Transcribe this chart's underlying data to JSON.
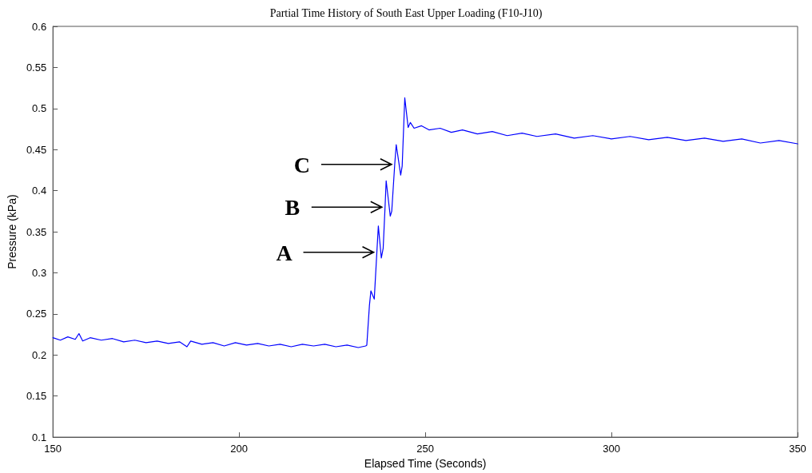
{
  "chart_data": {
    "type": "line",
    "title": "Partial Time History of South East Upper Loading (F10-J10)",
    "xlabel": "Elapsed Time (Seconds)",
    "ylabel": "Pressure (kPa)",
    "x": [
      150,
      152,
      154,
      156,
      157,
      158,
      160,
      163,
      166,
      169,
      172,
      175,
      178,
      181,
      184,
      186,
      187,
      190,
      193,
      196,
      199,
      202,
      205,
      208,
      211,
      214,
      217,
      220,
      223,
      226,
      229,
      232,
      234,
      234.3,
      235.0,
      235.4,
      236.3,
      237.0,
      237.4,
      238.2,
      238.7,
      239.2,
      239.5,
      240.6,
      241.0,
      241.8,
      242.2,
      243.4,
      243.8,
      244.5,
      245.4,
      246,
      247,
      249,
      251,
      254,
      257,
      260,
      264,
      268,
      272,
      276,
      280,
      285,
      290,
      295,
      300,
      305,
      310,
      315,
      320,
      325,
      330,
      335,
      340,
      345,
      350
    ],
    "series": [
      {
        "color": "#0000ff",
        "values": [
          0.221,
          0.218,
          0.222,
          0.219,
          0.226,
          0.217,
          0.221,
          0.218,
          0.22,
          0.216,
          0.218,
          0.215,
          0.217,
          0.214,
          0.216,
          0.21,
          0.217,
          0.213,
          0.215,
          0.211,
          0.215,
          0.212,
          0.214,
          0.211,
          0.213,
          0.21,
          0.213,
          0.211,
          0.213,
          0.21,
          0.212,
          0.209,
          0.211,
          0.212,
          0.26,
          0.278,
          0.268,
          0.325,
          0.357,
          0.318,
          0.33,
          0.38,
          0.412,
          0.369,
          0.375,
          0.432,
          0.456,
          0.419,
          0.43,
          0.513,
          0.477,
          0.483,
          0.476,
          0.479,
          0.474,
          0.476,
          0.471,
          0.474,
          0.469,
          0.472,
          0.467,
          0.47,
          0.466,
          0.469,
          0.464,
          0.467,
          0.463,
          0.466,
          0.462,
          0.465,
          0.461,
          0.464,
          0.46,
          0.463,
          0.458,
          0.461,
          0.457
        ]
      }
    ],
    "xlim": [
      150,
      350
    ],
    "xticks": [
      150,
      200,
      250,
      300,
      350
    ],
    "ylim": [
      0.1,
      0.6
    ],
    "yticks": [
      0.1,
      0.15,
      0.2,
      0.25,
      0.3,
      0.35,
      0.4,
      0.45,
      0.5,
      0.55,
      0.6
    ],
    "annotations": [
      {
        "text": "A",
        "x": 237.0,
        "y": 0.325
      },
      {
        "text": "B",
        "x": 239.2,
        "y": 0.38
      },
      {
        "text": "C",
        "x": 241.8,
        "y": 0.432
      }
    ],
    "grid": false,
    "marker": "none",
    "line_style": "solid"
  }
}
